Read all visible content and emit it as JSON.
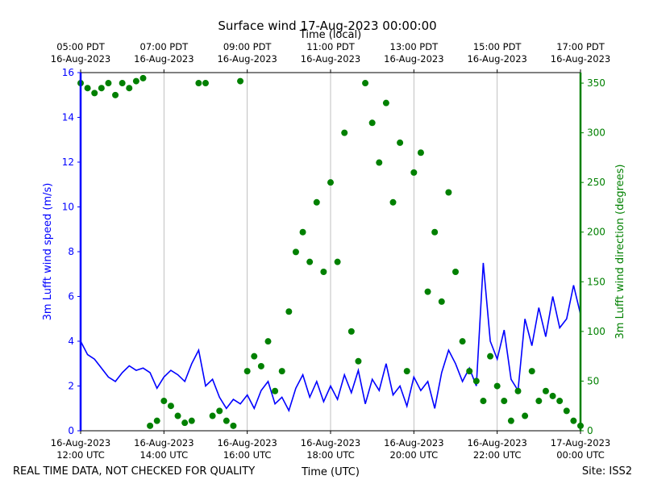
{
  "chart_data": {
    "type": "line-scatter",
    "title": "Surface wind 17-Aug-2023 00:00:00",
    "x_label": "Time (UTC)",
    "x2_label": "Time (local)",
    "y_label": "3m Lufft wind speed (m/s)",
    "y2_label": "3m Lufft wind direction (degrees)",
    "footnote_left": "REAL TIME DATA, NOT CHECKED FOR QUALITY",
    "footnote_right": "Site: ISS2",
    "grid": true,
    "xlim": [
      "2023-08-16T12:00",
      "2023-08-17T00:00"
    ],
    "xticks": [
      {
        "value": "2023-08-16T12:00",
        "label": [
          "16-Aug-2023",
          "12:00 UTC"
        ]
      },
      {
        "value": "2023-08-16T14:00",
        "label": [
          "16-Aug-2023",
          "14:00 UTC"
        ]
      },
      {
        "value": "2023-08-16T16:00",
        "label": [
          "16-Aug-2023",
          "16:00 UTC"
        ]
      },
      {
        "value": "2023-08-16T18:00",
        "label": [
          "16-Aug-2023",
          "18:00 UTC"
        ]
      },
      {
        "value": "2023-08-16T20:00",
        "label": [
          "16-Aug-2023",
          "20:00 UTC"
        ]
      },
      {
        "value": "2023-08-16T22:00",
        "label": [
          "16-Aug-2023",
          "22:00 UTC"
        ]
      },
      {
        "value": "2023-08-17T00:00",
        "label": [
          "17-Aug-2023",
          "00:00 UTC"
        ]
      }
    ],
    "x2ticks": [
      {
        "value": "2023-08-16T12:00",
        "label": [
          "05:00 PDT",
          "16-Aug-2023"
        ]
      },
      {
        "value": "2023-08-16T14:00",
        "label": [
          "07:00 PDT",
          "16-Aug-2023"
        ]
      },
      {
        "value": "2023-08-16T16:00",
        "label": [
          "09:00 PDT",
          "16-Aug-2023"
        ]
      },
      {
        "value": "2023-08-16T18:00",
        "label": [
          "11:00 PDT",
          "16-Aug-2023"
        ]
      },
      {
        "value": "2023-08-16T20:00",
        "label": [
          "13:00 PDT",
          "16-Aug-2023"
        ]
      },
      {
        "value": "2023-08-16T22:00",
        "label": [
          "15:00 PDT",
          "16-Aug-2023"
        ]
      },
      {
        "value": "2023-08-17T00:00",
        "label": [
          "17:00 PDT",
          "16-Aug-2023"
        ]
      }
    ],
    "ylim": [
      0,
      16
    ],
    "yticks": [
      0,
      2,
      4,
      6,
      8,
      10,
      12,
      14,
      16
    ],
    "y2lim": [
      0,
      360.6
    ],
    "y2ticks": [
      0,
      50,
      100,
      150,
      200,
      250,
      300,
      350
    ],
    "y_color": "#0000ff",
    "y2_color": "#008000",
    "x": [
      "2023-08-16T12:00",
      "2023-08-16T12:10",
      "2023-08-16T12:20",
      "2023-08-16T12:30",
      "2023-08-16T12:40",
      "2023-08-16T12:50",
      "2023-08-16T13:00",
      "2023-08-16T13:10",
      "2023-08-16T13:20",
      "2023-08-16T13:30",
      "2023-08-16T13:40",
      "2023-08-16T13:50",
      "2023-08-16T14:00",
      "2023-08-16T14:10",
      "2023-08-16T14:20",
      "2023-08-16T14:30",
      "2023-08-16T14:40",
      "2023-08-16T14:50",
      "2023-08-16T15:00",
      "2023-08-16T15:10",
      "2023-08-16T15:20",
      "2023-08-16T15:30",
      "2023-08-16T15:40",
      "2023-08-16T15:50",
      "2023-08-16T16:00",
      "2023-08-16T16:10",
      "2023-08-16T16:20",
      "2023-08-16T16:30",
      "2023-08-16T16:40",
      "2023-08-16T16:50",
      "2023-08-16T17:00",
      "2023-08-16T17:10",
      "2023-08-16T17:20",
      "2023-08-16T17:30",
      "2023-08-16T17:40",
      "2023-08-16T17:50",
      "2023-08-16T18:00",
      "2023-08-16T18:10",
      "2023-08-16T18:20",
      "2023-08-16T18:30",
      "2023-08-16T18:40",
      "2023-08-16T18:50",
      "2023-08-16T19:00",
      "2023-08-16T19:10",
      "2023-08-16T19:20",
      "2023-08-16T19:30",
      "2023-08-16T19:40",
      "2023-08-16T19:50",
      "2023-08-16T20:00",
      "2023-08-16T20:10",
      "2023-08-16T20:20",
      "2023-08-16T20:30",
      "2023-08-16T20:40",
      "2023-08-16T20:50",
      "2023-08-16T21:00",
      "2023-08-16T21:10",
      "2023-08-16T21:20",
      "2023-08-16T21:30",
      "2023-08-16T21:40",
      "2023-08-16T21:50",
      "2023-08-16T22:00",
      "2023-08-16T22:10",
      "2023-08-16T22:20",
      "2023-08-16T22:30",
      "2023-08-16T22:40",
      "2023-08-16T22:50",
      "2023-08-16T23:00",
      "2023-08-16T23:10",
      "2023-08-16T23:20",
      "2023-08-16T23:30",
      "2023-08-16T23:40",
      "2023-08-16T23:50",
      "2023-08-17T00:00"
    ],
    "series": [
      {
        "color": "#0000ff",
        "kind": "line",
        "axis": "y",
        "values": [
          4.0,
          3.4,
          3.2,
          2.8,
          2.4,
          2.2,
          2.6,
          2.9,
          2.7,
          2.8,
          2.6,
          1.9,
          2.4,
          2.7,
          2.5,
          2.2,
          3.0,
          3.6,
          2.0,
          2.3,
          1.5,
          1.0,
          1.4,
          1.2,
          1.6,
          1.0,
          1.8,
          2.2,
          1.2,
          1.5,
          0.9,
          1.9,
          2.5,
          1.5,
          2.2,
          1.3,
          2.0,
          1.4,
          2.5,
          1.7,
          2.7,
          1.2,
          2.3,
          1.8,
          3.0,
          1.6,
          2.0,
          1.1,
          2.4,
          1.8,
          2.2,
          1.0,
          2.6,
          3.6,
          3.0,
          2.2,
          2.8,
          2.0,
          7.5,
          4.0,
          3.2,
          4.5,
          2.3,
          1.8,
          5.0,
          3.8,
          5.5,
          4.2,
          6.0,
          4.6,
          5.0,
          6.5,
          5.2
        ]
      },
      {
        "color": "#008000",
        "kind": "scatter",
        "axis": "y2",
        "values": [
          350,
          345,
          340,
          345,
          350,
          338,
          350,
          345,
          352,
          355,
          5,
          10,
          30,
          25,
          15,
          8,
          10,
          350,
          350,
          15,
          20,
          10,
          5,
          352,
          60,
          75,
          65,
          90,
          40,
          60,
          120,
          180,
          200,
          170,
          230,
          160,
          250,
          170,
          300,
          100,
          70,
          350,
          310,
          270,
          330,
          230,
          290,
          60,
          260,
          280,
          140,
          200,
          130,
          240,
          160,
          90,
          60,
          50,
          30,
          75,
          45,
          30,
          10,
          40,
          15,
          60,
          30,
          40,
          35,
          30,
          20,
          10,
          5
        ]
      }
    ]
  }
}
